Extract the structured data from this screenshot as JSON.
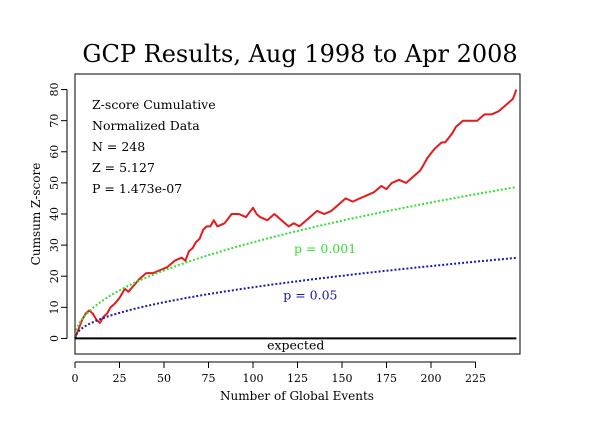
{
  "chart_data": {
    "type": "line",
    "title": "GCP Results, Aug 1998 to Apr 2008",
    "xlabel": "Number of Global Events",
    "ylabel": "Cumsum Z-score",
    "xlim": [
      0,
      250
    ],
    "ylim": [
      -5,
      85
    ],
    "x_ticks": [
      0,
      25,
      50,
      75,
      100,
      125,
      150,
      175,
      200,
      225
    ],
    "y_ticks": [
      0,
      10,
      20,
      30,
      40,
      50,
      60,
      70,
      80
    ],
    "grid": false,
    "stats": [
      "Z-score Cumulative",
      "Normalized Data",
      "N = 248",
      "Z = 5.127",
      "P = 1.473e-07"
    ],
    "series": [
      {
        "name": "",
        "color": "#e41a1c",
        "style": "solid",
        "x": [
          0,
          2,
          4,
          6,
          8,
          10,
          12,
          14,
          16,
          18,
          20,
          22,
          25,
          28,
          30,
          33,
          36,
          40,
          44,
          48,
          52,
          56,
          60,
          62,
          64,
          66,
          68,
          70,
          72,
          74,
          76,
          78,
          80,
          84,
          88,
          92,
          96,
          100,
          102,
          104,
          108,
          112,
          116,
          120,
          123,
          126,
          130,
          134,
          136,
          140,
          144,
          148,
          152,
          156,
          160,
          164,
          168,
          172,
          175,
          178,
          182,
          186,
          190,
          194,
          196,
          198,
          202,
          206,
          208,
          212,
          214,
          218,
          222,
          226,
          230,
          234,
          238,
          242,
          246,
          248
        ],
        "y": [
          0,
          3,
          6,
          8,
          9,
          8,
          6,
          5,
          7,
          8,
          10,
          11,
          13,
          16,
          15,
          17,
          19,
          21,
          21,
          22,
          23,
          25,
          26,
          25,
          28,
          29,
          31,
          32,
          35,
          36,
          36,
          38,
          36,
          37,
          40,
          40,
          39,
          42,
          40,
          39,
          38,
          40,
          38,
          36,
          37,
          36,
          38,
          40,
          41,
          40,
          41,
          43,
          45,
          44,
          45,
          46,
          47,
          49,
          48,
          50,
          51,
          50,
          52,
          54,
          56,
          58,
          61,
          63,
          63,
          66,
          68,
          70,
          70,
          70,
          72,
          72,
          73,
          75,
          77,
          80
        ]
      },
      {
        "name": "",
        "color": "#33dd33",
        "style": "dotted",
        "function": "3.09 * sqrt(x)",
        "x_range": [
          0,
          248
        ]
      },
      {
        "name": "",
        "color": "#1a1aa8",
        "style": "dotted",
        "function": "1.645 * sqrt(x)",
        "x_range": [
          0,
          248
        ]
      },
      {
        "name": "",
        "color": "#000000",
        "style": "solid",
        "function": "0",
        "x_range": [
          0,
          248
        ]
      }
    ],
    "annotations": [
      {
        "text": "p = 0.001",
        "color": "#33dd33",
        "x": 123,
        "y": 27.5
      },
      {
        "text": "p = 0.05",
        "color": "#1a1aa8",
        "x": 117,
        "y": 12.5
      },
      {
        "text": "expected",
        "color": "#000000",
        "x": 124,
        "y": -3.5
      }
    ]
  }
}
